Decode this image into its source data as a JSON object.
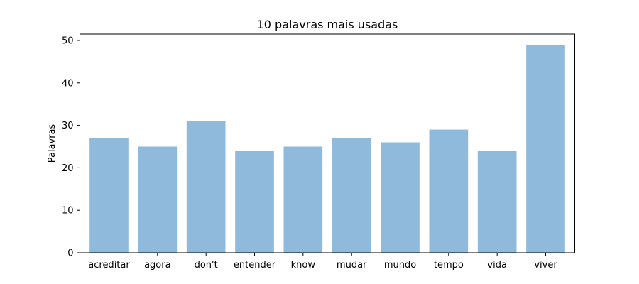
{
  "chart_data": {
    "type": "bar",
    "title": "10 palavras mais usadas",
    "xlabel": "",
    "ylabel": "Palavras",
    "categories": [
      "acreditar",
      "agora",
      "don't",
      "entender",
      "know",
      "mudar",
      "mundo",
      "tempo",
      "vida",
      "viver"
    ],
    "values": [
      27,
      25,
      31,
      24,
      25,
      27,
      26,
      29,
      24,
      49
    ],
    "ylim": [
      0,
      51.5
    ],
    "yticks": [
      0,
      10,
      20,
      30,
      40,
      50
    ],
    "bar_color": "#8fbadb",
    "grid": false,
    "legend": "none"
  }
}
